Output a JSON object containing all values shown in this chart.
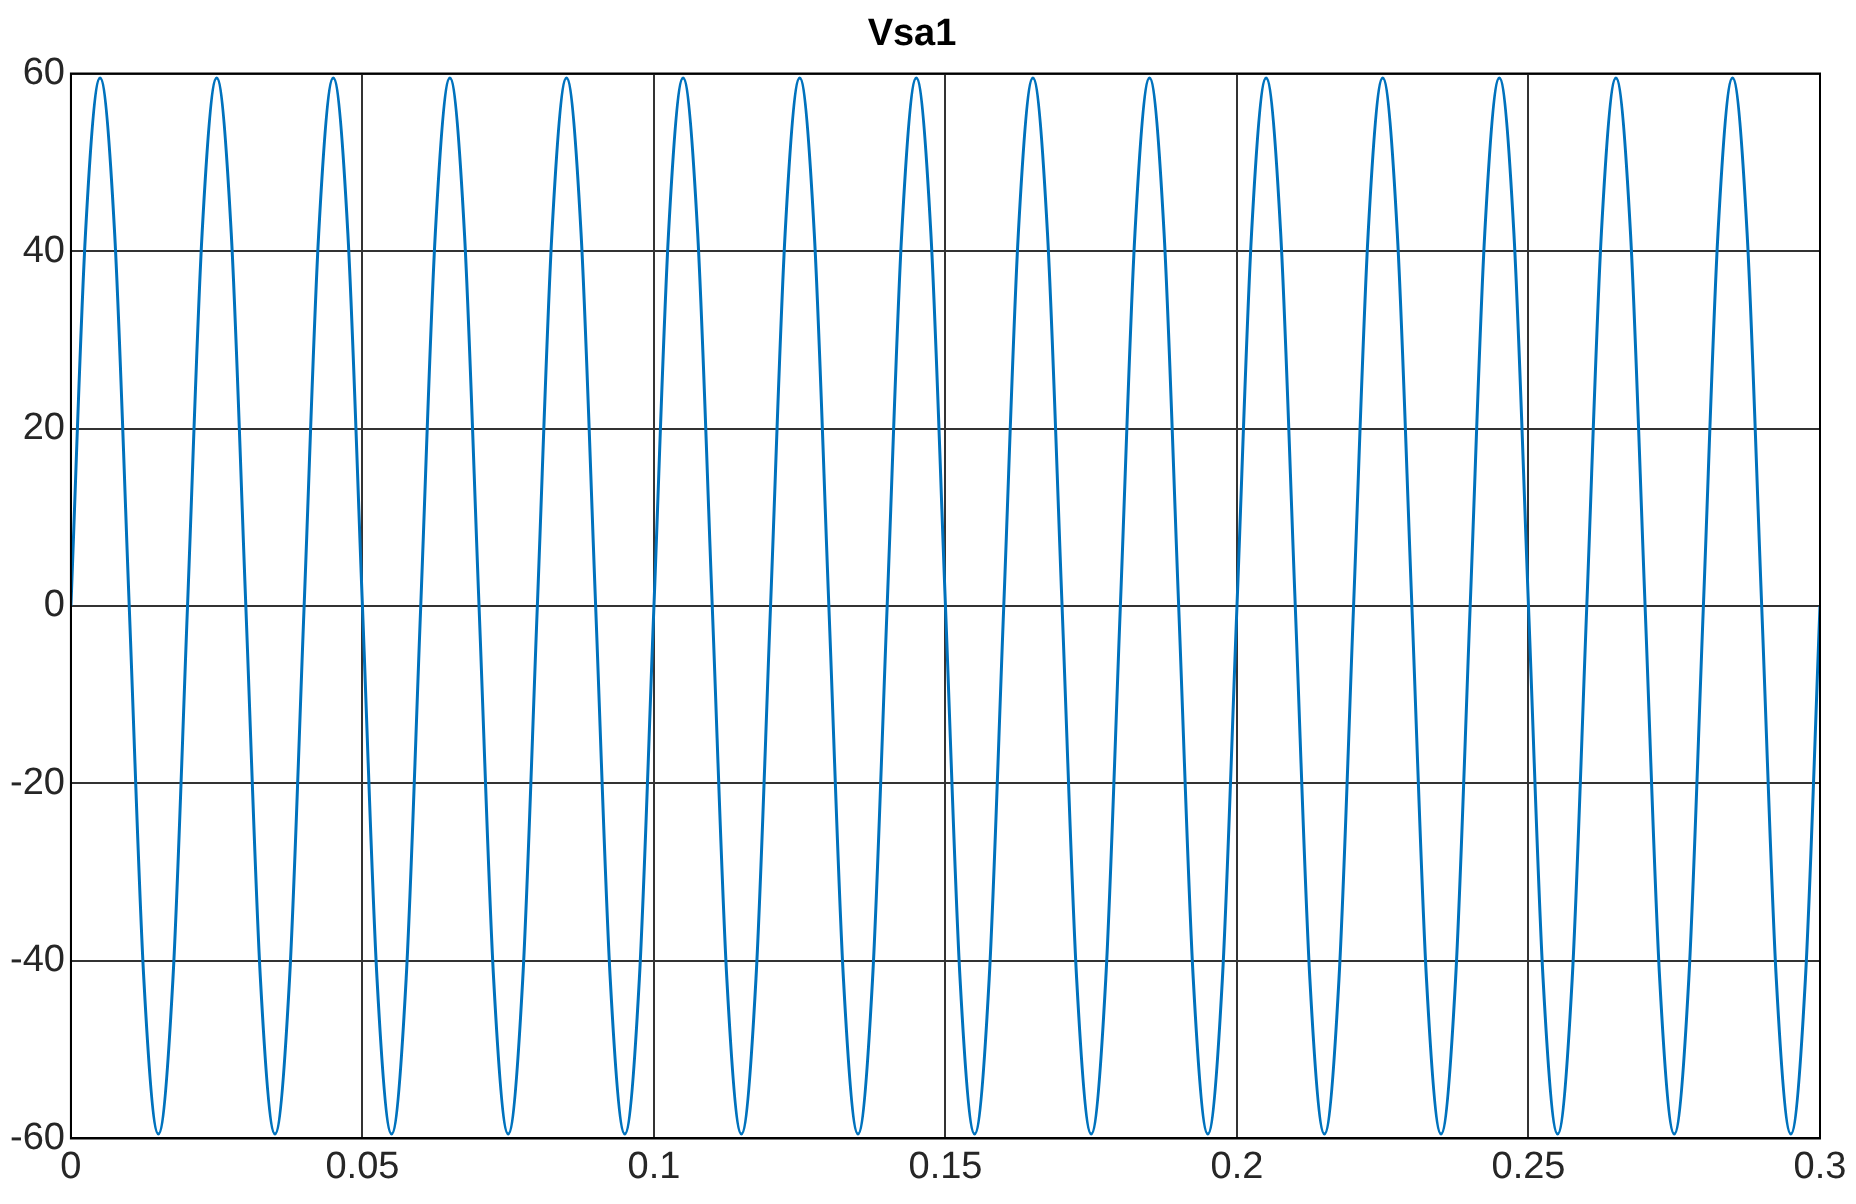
{
  "chart_data": {
    "type": "line",
    "title": "Vsa1",
    "x": [
      0,
      0.0025,
      0.005,
      0.0075,
      0.01,
      0.0125,
      0.015,
      0.0175,
      0.02,
      0.0225,
      0.025,
      0.0275,
      0.03,
      0.0325,
      0.035,
      0.0375,
      0.04,
      0.0425,
      0.045,
      0.0475,
      0.05,
      0.0525,
      0.055,
      0.0575,
      0.06,
      0.0625,
      0.065,
      0.0675,
      0.07,
      0.0725,
      0.075,
      0.0775,
      0.08,
      0.0825,
      0.085,
      0.0875,
      0.09,
      0.0925,
      0.095,
      0.0975,
      0.1,
      0.1025,
      0.105,
      0.1075,
      0.11,
      0.1125,
      0.115,
      0.1175,
      0.12,
      0.1225,
      0.125,
      0.1275,
      0.13,
      0.1325,
      0.135,
      0.1375,
      0.14,
      0.1425,
      0.145,
      0.1475,
      0.15,
      0.1525,
      0.155,
      0.1575,
      0.16,
      0.1625,
      0.165,
      0.1675,
      0.17,
      0.1725,
      0.175,
      0.1775,
      0.18,
      0.1825,
      0.185,
      0.1875,
      0.19,
      0.1925,
      0.195,
      0.1975,
      0.2,
      0.2025,
      0.205,
      0.2075,
      0.21,
      0.2125,
      0.215,
      0.2175,
      0.22,
      0.2225,
      0.225,
      0.2275,
      0.23,
      0.2325,
      0.235,
      0.2375,
      0.24,
      0.2425,
      0.245,
      0.2475,
      0.25,
      0.2525,
      0.255,
      0.2575,
      0.26,
      0.2625,
      0.265,
      0.2675,
      0.27,
      0.2725,
      0.275,
      0.2775,
      0.28,
      0.2825,
      0.285,
      0.2875,
      0.29,
      0.2925,
      0.295,
      0.2975,
      0.3
    ],
    "series": [
      {
        "color": "#0072bd",
        "values": [
          0,
          42,
          59.5,
          42,
          0,
          -42,
          -59.5,
          -42,
          0,
          42,
          59.5,
          42,
          0,
          -42,
          -59.5,
          -42,
          0,
          42,
          59.5,
          42,
          0,
          -42,
          -59.5,
          -42,
          0,
          42,
          59.5,
          42,
          0,
          -42,
          -59.5,
          -42,
          0,
          42,
          59.5,
          42,
          0,
          -42,
          -59.5,
          -42,
          0,
          42,
          59.5,
          42,
          0,
          -42,
          -59.5,
          -42,
          0,
          42,
          59.5,
          42,
          0,
          -42,
          -59.5,
          -42,
          0,
          42,
          59.5,
          42,
          0,
          -42,
          -59.5,
          -42,
          0,
          42,
          59.5,
          42,
          0,
          -42,
          -59.5,
          -42,
          0,
          42,
          59.5,
          42,
          0,
          -42,
          -59.5,
          -42,
          0,
          42,
          59.5,
          42,
          0,
          -42,
          -59.5,
          -42,
          0,
          42,
          59.5,
          42,
          0,
          -42,
          -59.5,
          -42,
          0,
          42,
          59.5,
          42,
          0,
          -42,
          -59.5,
          -42,
          0,
          42,
          59.5,
          42,
          0,
          -42,
          -59.5,
          -42,
          0,
          42,
          59.5,
          42,
          0,
          -42,
          -59.5,
          -42,
          0
        ]
      }
    ],
    "xlim": [
      0,
      0.3
    ],
    "xticks": [
      0,
      0.05,
      0.1,
      0.15,
      0.2,
      0.25,
      0.3
    ],
    "ylim": [
      -60,
      60
    ],
    "yticks": [
      -60,
      -40,
      -20,
      0,
      20,
      40,
      60
    ],
    "grid": true,
    "legend": false,
    "marker": "none",
    "line_style": "solid"
  }
}
